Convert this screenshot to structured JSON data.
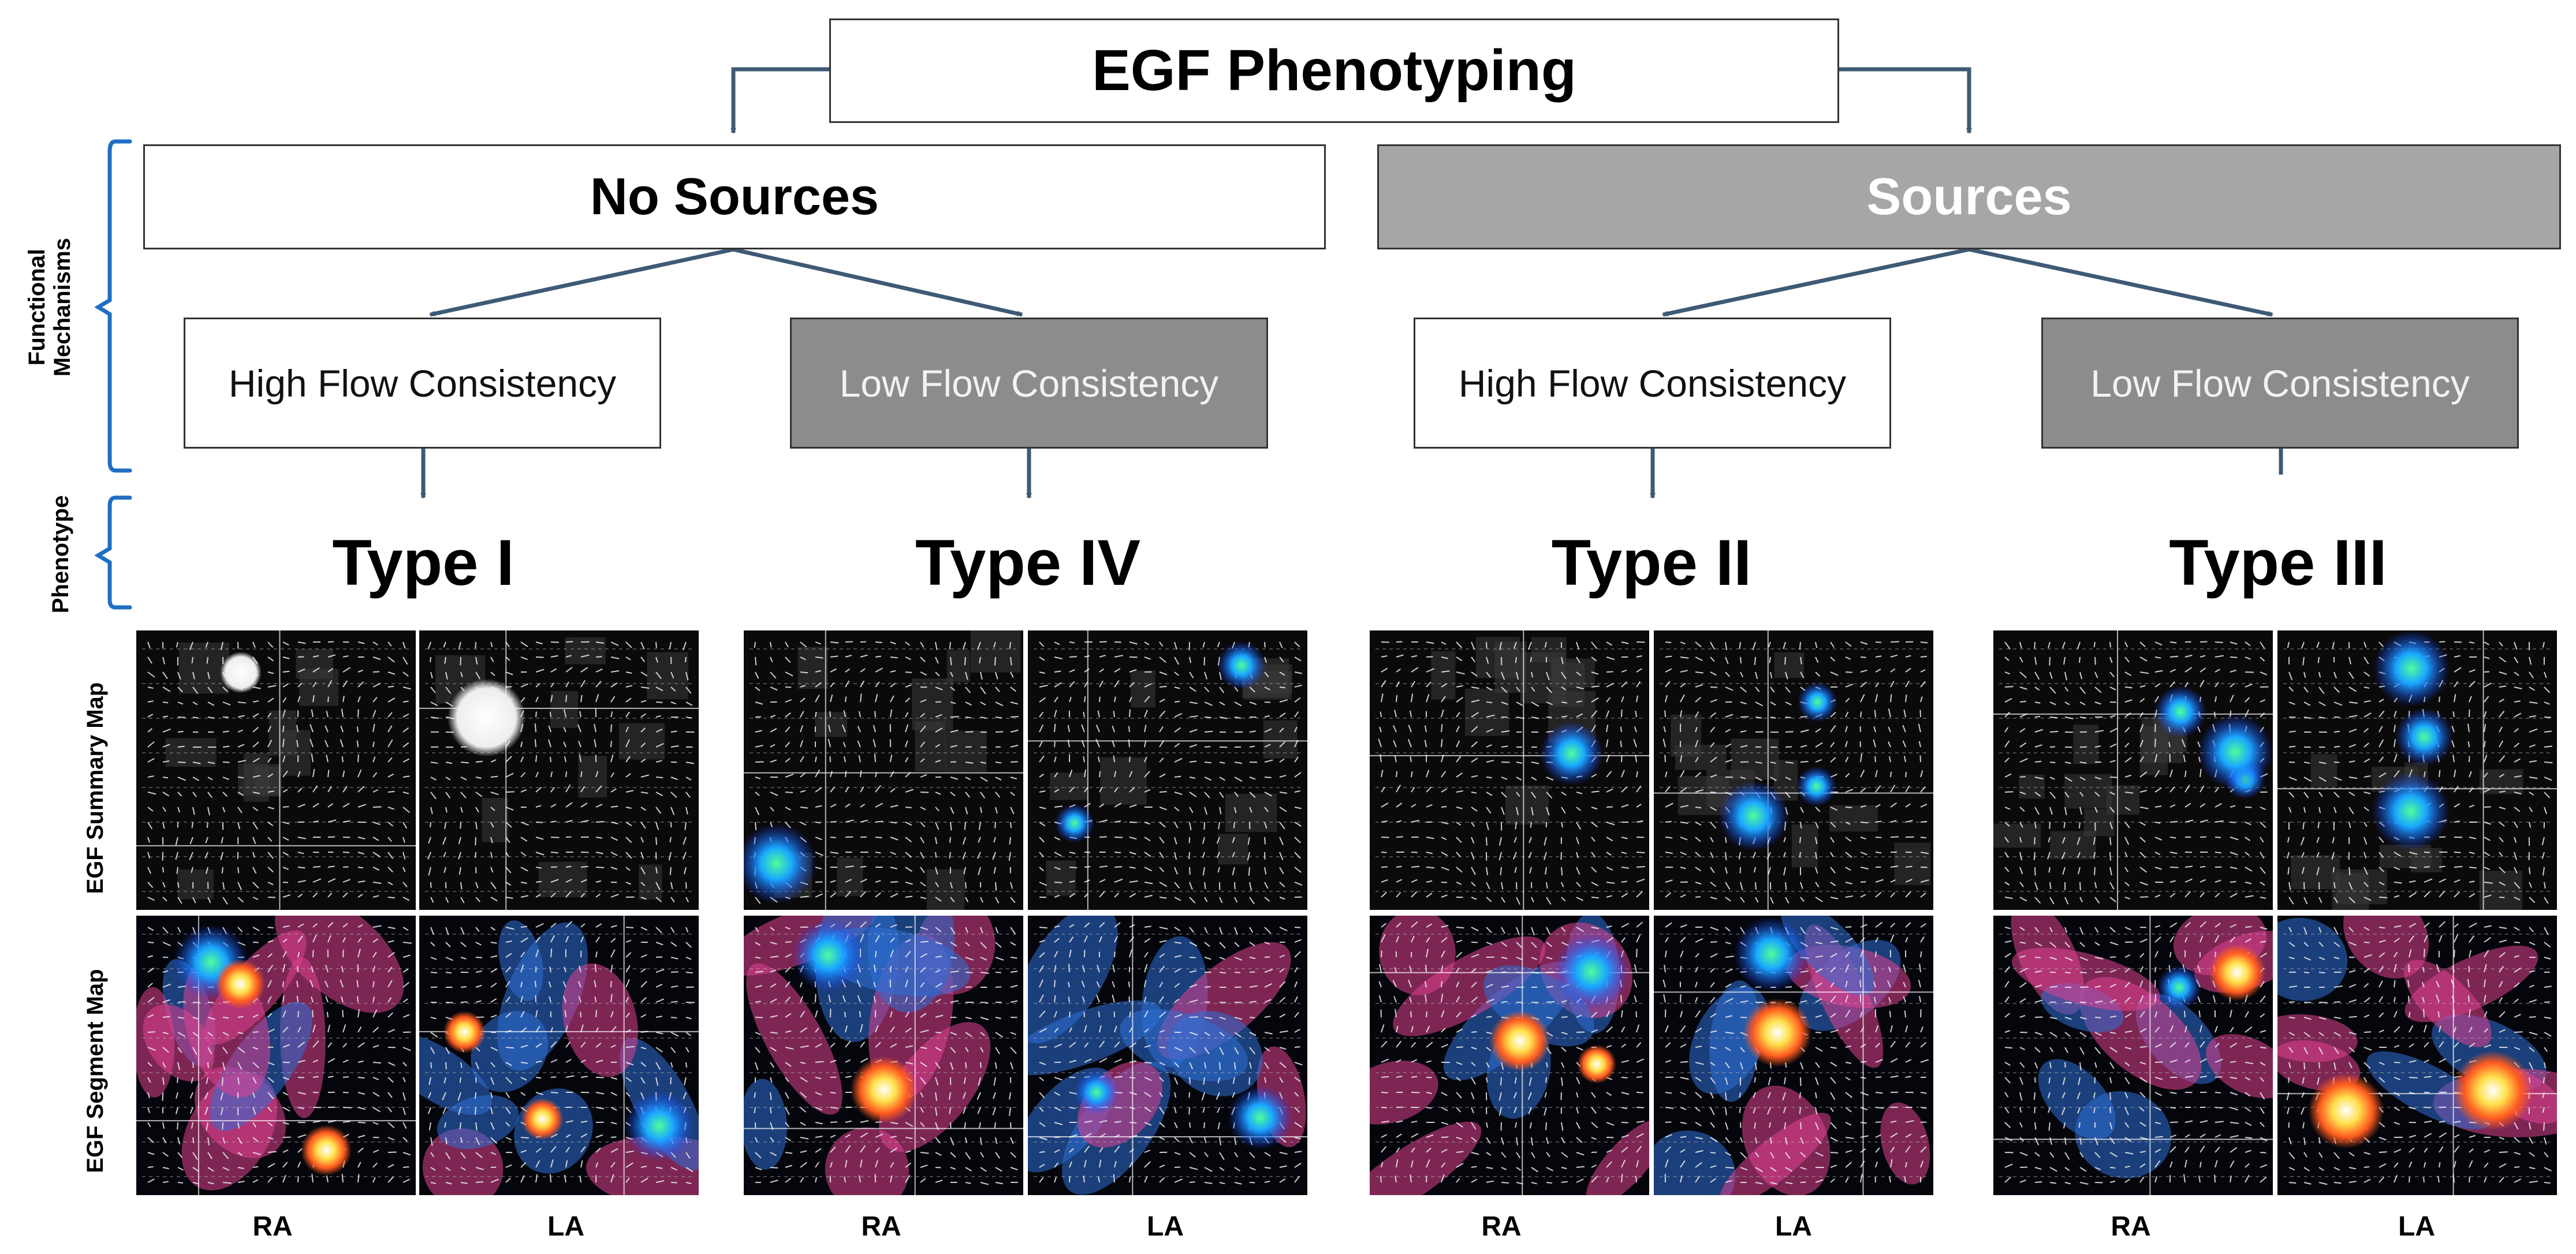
{
  "title": "EGF Phenotyping",
  "groups": {
    "no_sources": "No Sources",
    "sources": "Sources"
  },
  "consistency": {
    "ns_high": "High Flow Consistency",
    "ns_low": "Low Flow Consistency",
    "s_high": "High Flow Consistency",
    "s_low": "Low Flow Consistency"
  },
  "types": {
    "type1": "Type I",
    "type4": "Type IV",
    "type2": "Type II",
    "type3": "Type III"
  },
  "side_labels": {
    "functional_line1": "Functional",
    "functional_line2": "Mechanisms",
    "phenotype": "Phenotype",
    "summary_map": "EGF Summary Map",
    "segment_map": "EGF Segment Map"
  },
  "columns": [
    "RA",
    "LA",
    "RA",
    "LA",
    "RA",
    "LA",
    "RA",
    "LA"
  ],
  "colors": {
    "connector": "#3e5a74",
    "bracket": "#1f6fc4",
    "source_gray": "#a6a6a6",
    "low_gray": "#8c8c8c",
    "flow_pink": "#e0418f",
    "flow_blue": "#2e6fd6"
  }
}
